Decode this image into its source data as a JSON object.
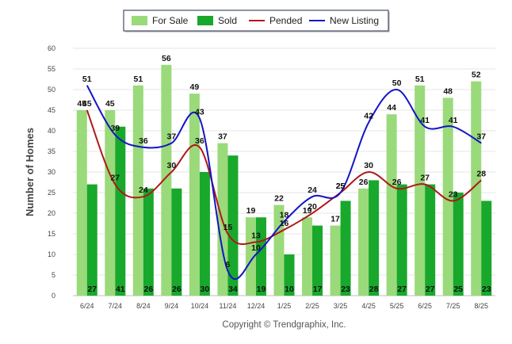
{
  "chart_data": {
    "type": "bar",
    "categories": [
      "6/24",
      "7/24",
      "8/24",
      "9/24",
      "10/24",
      "11/24",
      "12/24",
      "1/25",
      "2/25",
      "3/25",
      "4/25",
      "5/25",
      "6/25",
      "7/25",
      "8/25"
    ],
    "series": [
      {
        "name": "For Sale",
        "kind": "bar",
        "color": "#9ada7a",
        "values": [
          45,
          45,
          51,
          56,
          49,
          37,
          19,
          22,
          19,
          17,
          26,
          44,
          51,
          48,
          52
        ]
      },
      {
        "name": "Sold",
        "kind": "bar",
        "color": "#18a82c",
        "values": [
          27,
          41,
          26,
          26,
          30,
          34,
          19,
          10,
          17,
          23,
          28,
          27,
          27,
          25,
          23
        ]
      },
      {
        "name": "Pended",
        "kind": "line",
        "color": "#b01818",
        "values": [
          45,
          27,
          24,
          30,
          36,
          15,
          13,
          16,
          20,
          25,
          30,
          26,
          27,
          23,
          28
        ]
      },
      {
        "name": "New Listing",
        "kind": "line",
        "color": "#1414c8",
        "values": [
          51,
          39,
          36,
          37,
          43,
          6,
          10,
          18,
          24,
          25,
          42,
          50,
          41,
          41,
          37
        ]
      }
    ],
    "title": "",
    "xlabel": "",
    "ylabel": "Number of Homes",
    "ylim": [
      0,
      60
    ],
    "yticks": [
      "0",
      "5",
      "10",
      "15",
      "20",
      "25",
      "30",
      "35",
      "40",
      "45",
      "50",
      "55",
      "60"
    ],
    "grid": true,
    "legend_position": "top"
  },
  "credit": "Copyright © Trendgraphix, Inc."
}
